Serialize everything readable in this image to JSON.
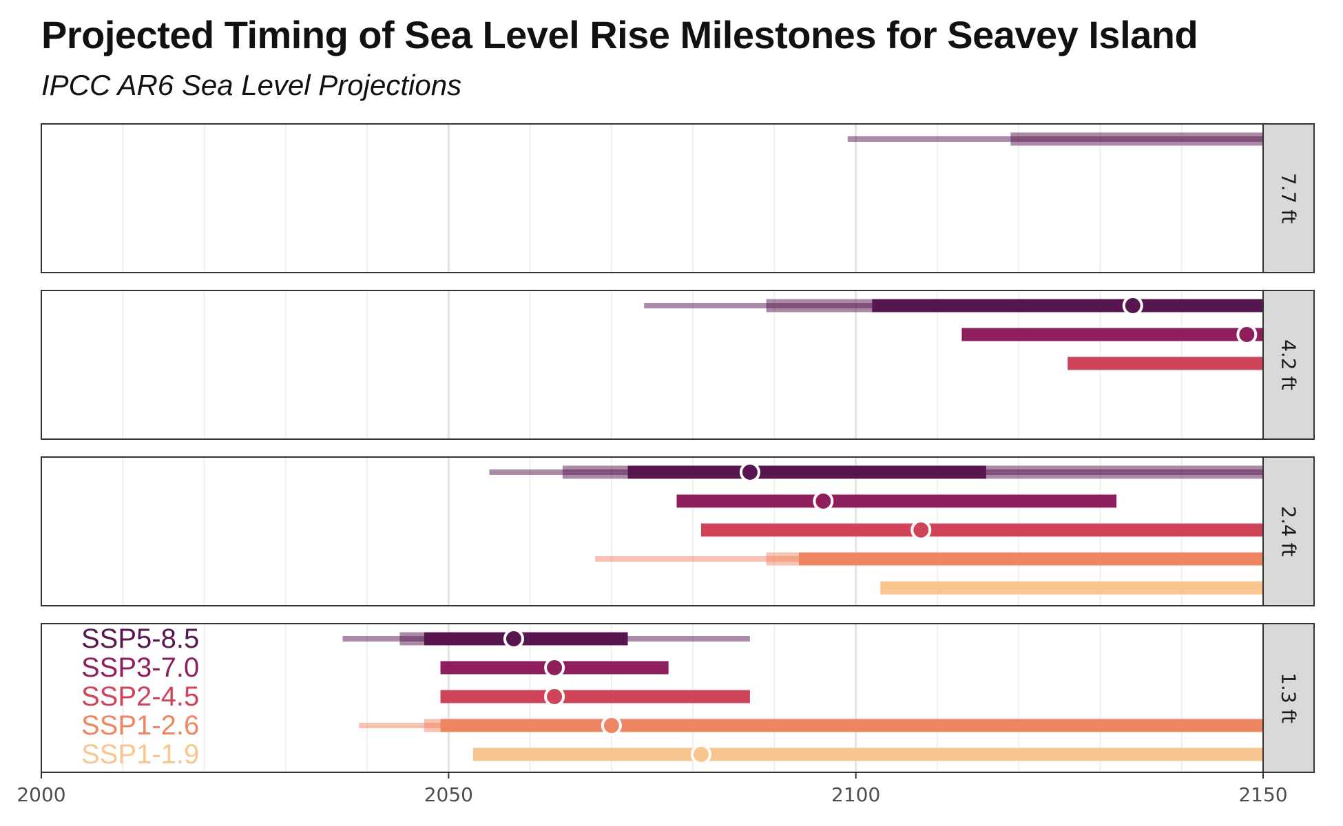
{
  "chart_data": {
    "type": "range",
    "title": "Projected Timing of Sea Level Rise Milestones for Seavey Island",
    "subtitle": "IPCC AR6 Sea Level Projections",
    "xlim": [
      2000,
      2150
    ],
    "x_ticks": [
      2000,
      2050,
      2100,
      2150
    ],
    "scenarios": [
      {
        "name": "SSP5-8.5",
        "color": "#57164f"
      },
      {
        "name": "SSP3-7.0",
        "color": "#8e1e5c"
      },
      {
        "name": "SSP2-4.5",
        "color": "#cf4458"
      },
      {
        "name": "SSP1-2.6",
        "color": "#ef8663"
      },
      {
        "name": "SSP1-1.9",
        "color": "#f9c68f"
      }
    ],
    "panels": [
      {
        "label": "7.7 ft",
        "series": [
          {
            "scenario": "SSP5-8.5",
            "low_conf_outer": [
              2099,
              2150
            ],
            "low_conf_inner": [
              2119,
              2150
            ],
            "likely": null,
            "median": null
          }
        ]
      },
      {
        "label": "4.2 ft",
        "series": [
          {
            "scenario": "SSP5-8.5",
            "low_conf_outer": [
              2074,
              2150
            ],
            "low_conf_inner": [
              2089,
              2150
            ],
            "likely": [
              2102,
              2150
            ],
            "median": 2134
          },
          {
            "scenario": "SSP3-7.0",
            "low_conf_outer": null,
            "low_conf_inner": null,
            "likely": [
              2113,
              2150
            ],
            "median": 2148
          },
          {
            "scenario": "SSP2-4.5",
            "low_conf_outer": null,
            "low_conf_inner": null,
            "likely": [
              2126,
              2150
            ],
            "median": null
          }
        ]
      },
      {
        "label": "2.4 ft",
        "series": [
          {
            "scenario": "SSP5-8.5",
            "low_conf_outer": [
              2055,
              2150
            ],
            "low_conf_inner": [
              2064,
              2150
            ],
            "likely": [
              2072,
              2116
            ],
            "median": 2087
          },
          {
            "scenario": "SSP3-7.0",
            "low_conf_outer": null,
            "low_conf_inner": null,
            "likely": [
              2078,
              2132
            ],
            "median": 2096
          },
          {
            "scenario": "SSP2-4.5",
            "low_conf_outer": null,
            "low_conf_inner": null,
            "likely": [
              2081,
              2150
            ],
            "median": 2108
          },
          {
            "scenario": "SSP1-2.6",
            "low_conf_outer": [
              2068,
              2150
            ],
            "low_conf_inner": [
              2089,
              2150
            ],
            "likely": [
              2093,
              2150
            ],
            "median": null
          },
          {
            "scenario": "SSP1-1.9",
            "low_conf_outer": null,
            "low_conf_inner": null,
            "likely": [
              2103,
              2150
            ],
            "median": null
          }
        ]
      },
      {
        "label": "1.3 ft",
        "series": [
          {
            "scenario": "SSP5-8.5",
            "low_conf_outer": [
              2037,
              2087
            ],
            "low_conf_inner": [
              2044,
              2072
            ],
            "likely": [
              2047,
              2072
            ],
            "median": 2058
          },
          {
            "scenario": "SSP3-7.0",
            "low_conf_outer": null,
            "low_conf_inner": null,
            "likely": [
              2049,
              2077
            ],
            "median": 2063
          },
          {
            "scenario": "SSP2-4.5",
            "low_conf_outer": null,
            "low_conf_inner": null,
            "likely": [
              2049,
              2087
            ],
            "median": 2063
          },
          {
            "scenario": "SSP1-2.6",
            "low_conf_outer": [
              2039,
              2150
            ],
            "low_conf_inner": [
              2047,
              2150
            ],
            "likely": [
              2049,
              2150
            ],
            "median": 2070
          },
          {
            "scenario": "SSP1-1.9",
            "low_conf_outer": null,
            "low_conf_inner": null,
            "likely": [
              2053,
              2150
            ],
            "median": 2081
          }
        ]
      }
    ],
    "legend": {
      "panel": "1.3 ft",
      "position": "left-inside"
    }
  }
}
